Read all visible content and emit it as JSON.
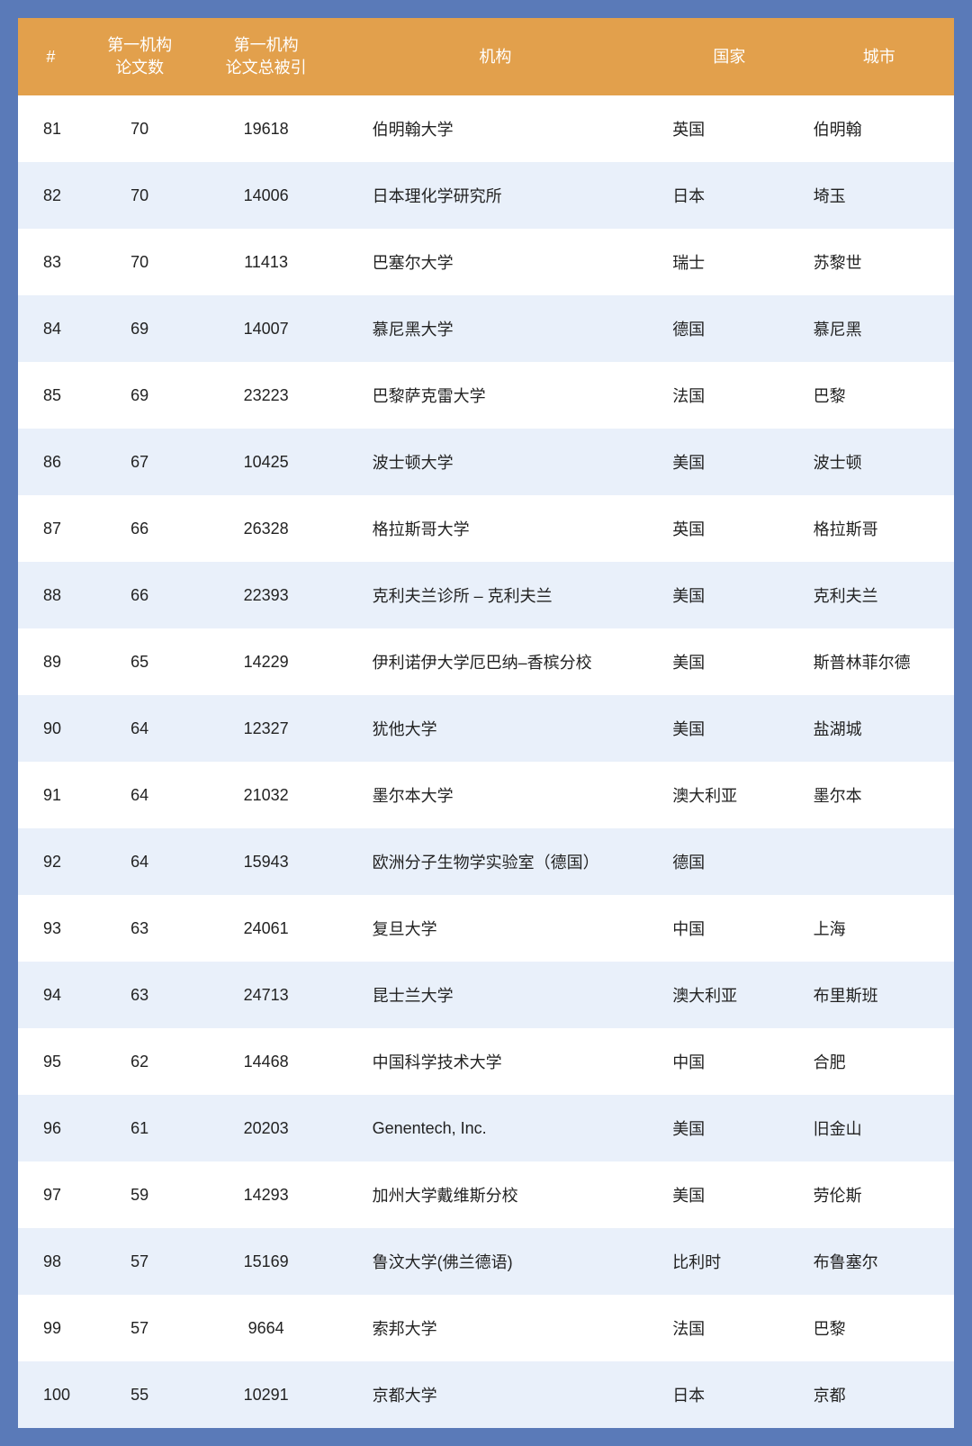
{
  "table": {
    "columns": {
      "rank": "#",
      "count": "第一机构\n论文数",
      "cites": "第一机构\n论文总被引",
      "inst": "机构",
      "ctry": "国家",
      "city": "城市"
    },
    "header_bg": "#e2a04c",
    "header_fg": "#ffffff",
    "row_bg_odd": "#ffffff",
    "row_bg_even": "#e9f0fa",
    "page_bg": "#5a7ab8",
    "font_size": 18,
    "rows": [
      {
        "rank": 81,
        "count": 70,
        "cites": 19618,
        "inst": "伯明翰大学",
        "ctry": "英国",
        "city": "伯明翰"
      },
      {
        "rank": 82,
        "count": 70,
        "cites": 14006,
        "inst": "日本理化学研究所",
        "ctry": "日本",
        "city": "埼玉"
      },
      {
        "rank": 83,
        "count": 70,
        "cites": 11413,
        "inst": "巴塞尔大学",
        "ctry": "瑞士",
        "city": "苏黎世"
      },
      {
        "rank": 84,
        "count": 69,
        "cites": 14007,
        "inst": "慕尼黑大学",
        "ctry": "德国",
        "city": "慕尼黑"
      },
      {
        "rank": 85,
        "count": 69,
        "cites": 23223,
        "inst": "巴黎萨克雷大学",
        "ctry": "法国",
        "city": "巴黎"
      },
      {
        "rank": 86,
        "count": 67,
        "cites": 10425,
        "inst": "波士顿大学",
        "ctry": "美国",
        "city": "波士顿"
      },
      {
        "rank": 87,
        "count": 66,
        "cites": 26328,
        "inst": "格拉斯哥大学",
        "ctry": "英国",
        "city": "格拉斯哥"
      },
      {
        "rank": 88,
        "count": 66,
        "cites": 22393,
        "inst": "克利夫兰诊所 – 克利夫兰",
        "ctry": "美国",
        "city": "克利夫兰"
      },
      {
        "rank": 89,
        "count": 65,
        "cites": 14229,
        "inst": "伊利诺伊大学厄巴纳–香槟分校",
        "ctry": "美国",
        "city": "斯普林菲尔德"
      },
      {
        "rank": 90,
        "count": 64,
        "cites": 12327,
        "inst": "犹他大学",
        "ctry": "美国",
        "city": "盐湖城"
      },
      {
        "rank": 91,
        "count": 64,
        "cites": 21032,
        "inst": "墨尔本大学",
        "ctry": "澳大利亚",
        "city": "墨尔本"
      },
      {
        "rank": 92,
        "count": 64,
        "cites": 15943,
        "inst": "欧洲分子生物学实验室（德国）",
        "ctry": "德国",
        "city": ""
      },
      {
        "rank": 93,
        "count": 63,
        "cites": 24061,
        "inst": "复旦大学",
        "ctry": "中国",
        "city": "上海"
      },
      {
        "rank": 94,
        "count": 63,
        "cites": 24713,
        "inst": "昆士兰大学",
        "ctry": "澳大利亚",
        "city": "布里斯班"
      },
      {
        "rank": 95,
        "count": 62,
        "cites": 14468,
        "inst": "中国科学技术大学",
        "ctry": "中国",
        "city": "合肥"
      },
      {
        "rank": 96,
        "count": 61,
        "cites": 20203,
        "inst": "Genentech, Inc.",
        "ctry": "美国",
        "city": "旧金山"
      },
      {
        "rank": 97,
        "count": 59,
        "cites": 14293,
        "inst": "加州大学戴维斯分校",
        "ctry": "美国",
        "city": "劳伦斯"
      },
      {
        "rank": 98,
        "count": 57,
        "cites": 15169,
        "inst": "鲁汶大学(佛兰德语)",
        "ctry": "比利时",
        "city": "布鲁塞尔"
      },
      {
        "rank": 99,
        "count": 57,
        "cites": 9664,
        "inst": "索邦大学",
        "ctry": "法国",
        "city": "巴黎"
      },
      {
        "rank": 100,
        "count": 55,
        "cites": 10291,
        "inst": "京都大学",
        "ctry": "日本",
        "city": "京都"
      }
    ]
  }
}
